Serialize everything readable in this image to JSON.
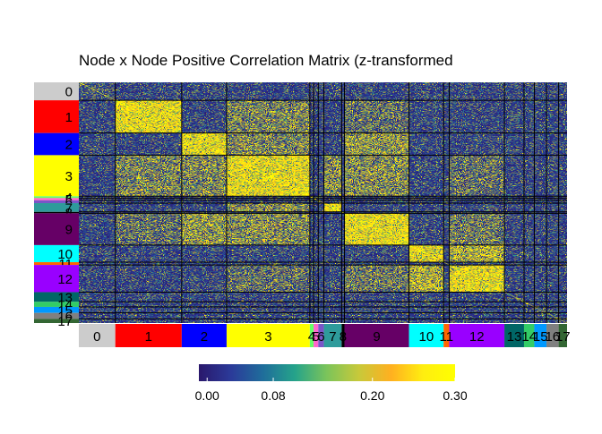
{
  "chart_data": {
    "type": "heatmap",
    "title": "Node x Node Positive Correlation Matrix (z-transformed",
    "xlabel": "",
    "ylabel": "",
    "communities": [
      {
        "id": "0",
        "size": 39,
        "color": "#cccccc"
      },
      {
        "id": "1",
        "size": 71,
        "color": "#ff0000"
      },
      {
        "id": "2",
        "size": 48,
        "color": "#0000ff"
      },
      {
        "id": "3",
        "size": 89,
        "color": "#ffff00"
      },
      {
        "id": "4",
        "size": 4,
        "color": "#66ff66"
      },
      {
        "id": "5",
        "size": 5,
        "color": "#ff66cc"
      },
      {
        "id": "6",
        "size": 6,
        "color": "#7a55c8"
      },
      {
        "id": "7",
        "size": 19,
        "color": "#2e9b9b"
      },
      {
        "id": "8",
        "size": 3,
        "color": "#000000"
      },
      {
        "id": "9",
        "size": 69,
        "color": "#660066"
      },
      {
        "id": "10",
        "size": 37,
        "color": "#00ffff"
      },
      {
        "id": "11",
        "size": 6,
        "color": "#ff6600"
      },
      {
        "id": "12",
        "size": 59,
        "color": "#9900ff"
      },
      {
        "id": "13",
        "size": 21,
        "color": "#006666"
      },
      {
        "id": "14",
        "size": 11,
        "color": "#33cc66"
      },
      {
        "id": "15",
        "size": 13,
        "color": "#0099ff"
      },
      {
        "id": "16",
        "size": 13,
        "color": "#808080"
      },
      {
        "id": "17",
        "size": 9,
        "color": "#336633"
      }
    ],
    "within_block_high": [
      "1",
      "2",
      "3",
      "7",
      "9",
      "10",
      "12"
    ],
    "colorbar": {
      "ticks": [
        "0.00",
        "0.08",
        "0.20",
        "0.30"
      ],
      "tick_values": [
        0.0,
        0.08,
        0.2,
        0.3
      ],
      "range": [
        -0.01,
        0.3
      ],
      "colors": [
        "#2a186c",
        "#2b3a99",
        "#1f6d9b",
        "#25a38a",
        "#7cc45a",
        "#c8c93a",
        "#ffb020",
        "#ffee10",
        "#ffff00"
      ]
    },
    "grid": false
  }
}
